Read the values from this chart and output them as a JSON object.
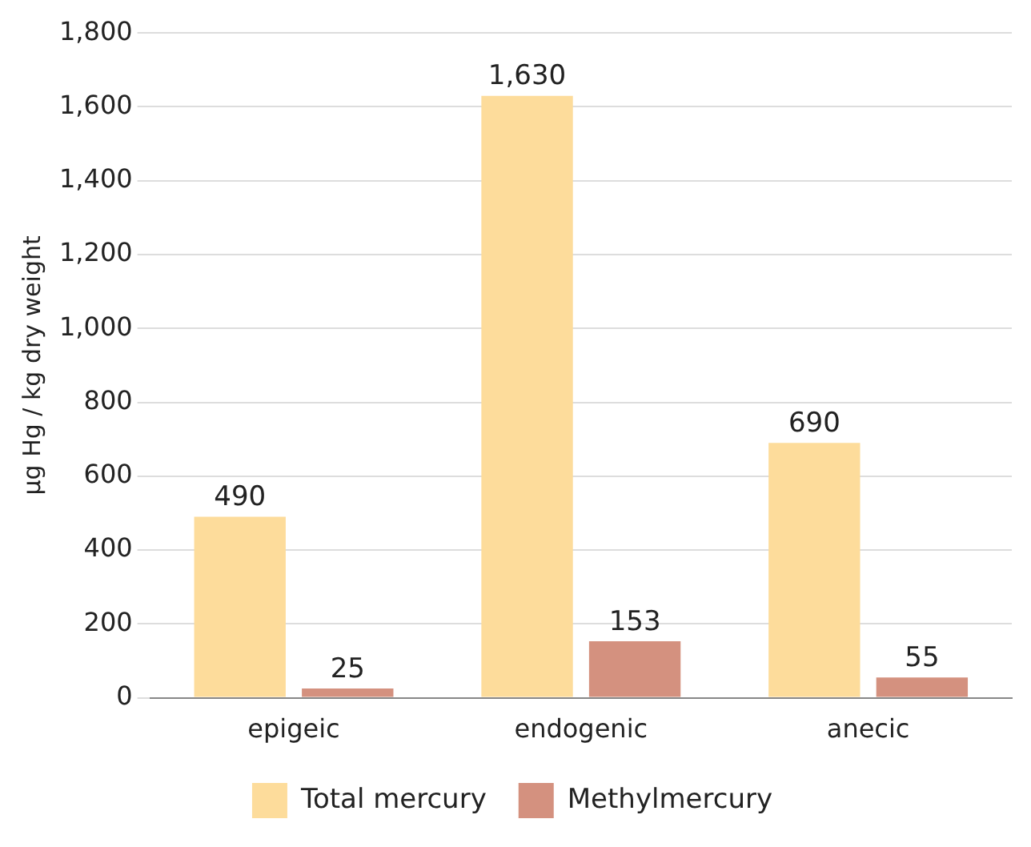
{
  "chart_data": {
    "type": "bar",
    "ylabel": "µg Hg / kg dry weight",
    "categories": [
      "epigeic",
      "endogenic",
      "anecic"
    ],
    "series": [
      {
        "name": "Total mercury",
        "color": "#fddc9b",
        "values": [
          490,
          1630,
          690
        ],
        "value_labels": [
          "490",
          "1,630",
          "690"
        ]
      },
      {
        "name": "Methylmercury",
        "color": "#d4917f",
        "values": [
          25,
          153,
          55
        ],
        "value_labels": [
          "25",
          "153",
          "55"
        ]
      }
    ],
    "ylim": [
      0,
      1800
    ],
    "yticks": [
      {
        "value": 0,
        "label": "0"
      },
      {
        "value": 200,
        "label": "200"
      },
      {
        "value": 400,
        "label": "400"
      },
      {
        "value": 600,
        "label": "600"
      },
      {
        "value": 800,
        "label": "800"
      },
      {
        "value": 1000,
        "label": "1,000"
      },
      {
        "value": 1200,
        "label": "1,200"
      },
      {
        "value": 1400,
        "label": "1,400"
      },
      {
        "value": 1600,
        "label": "1,600"
      },
      {
        "value": 1800,
        "label": "1,800"
      }
    ],
    "grid": "y",
    "legend": "bottom"
  }
}
